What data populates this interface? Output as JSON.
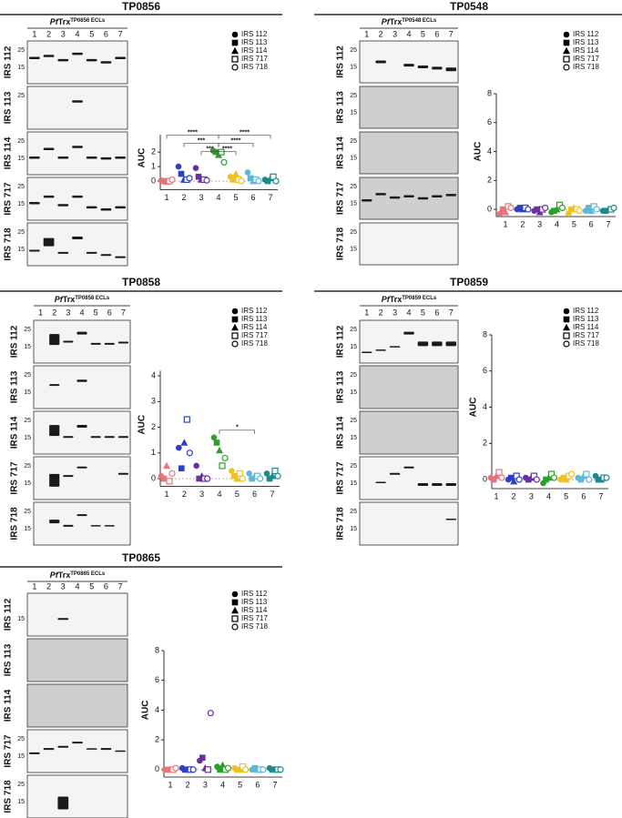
{
  "chart_data": [
    {
      "type": "scatter",
      "title": "TP0856",
      "y_label": "AUC",
      "categories": [
        "1",
        "2",
        "3",
        "4",
        "5",
        "6",
        "7"
      ],
      "category_colors": [
        "#e8737a",
        "#2b3fc7",
        "#6a2fa0",
        "#2aa02a",
        "#f0c020",
        "#5bb8d8",
        "#1a8a8a"
      ],
      "ylim": [
        -0.6,
        3.2
      ],
      "yticks": [
        0,
        1,
        2
      ],
      "series": [
        {
          "name": "IRS 112",
          "marker": "circle",
          "values": [
            0.05,
            1.0,
            0.9,
            2.1,
            0.3,
            0.6,
            0.1
          ]
        },
        {
          "name": "IRS 113",
          "marker": "square",
          "values": [
            0.0,
            0.5,
            0.3,
            2.0,
            0.1,
            0.2,
            0.0
          ]
        },
        {
          "name": "IRS 114",
          "marker": "triangle",
          "values": [
            -0.05,
            0.1,
            0.1,
            1.8,
            0.5,
            0.0,
            0.2
          ]
        },
        {
          "name": "IRS 717",
          "marker": "open-square",
          "values": [
            0.0,
            0.1,
            0.1,
            2.0,
            0.1,
            0.1,
            0.3
          ]
        },
        {
          "name": "IRS 718",
          "marker": "open-circle",
          "values": [
            0.1,
            0.2,
            0.05,
            1.3,
            0.0,
            0.0,
            0.0
          ]
        }
      ],
      "brackets": [
        {
          "label": "****",
          "between": [
            "1",
            "4"
          ]
        },
        {
          "label": "***",
          "between": [
            "2",
            "4"
          ]
        },
        {
          "label": "***",
          "between": [
            "3",
            "4"
          ]
        },
        {
          "label": "****",
          "between": [
            "4",
            "7"
          ]
        },
        {
          "label": "****",
          "between": [
            "4",
            "6"
          ]
        },
        {
          "label": "****",
          "between": [
            "4",
            "5"
          ]
        }
      ]
    },
    {
      "type": "scatter",
      "title": "TP0548",
      "y_label": "AUC",
      "categories": [
        "1",
        "2",
        "3",
        "4",
        "5",
        "6",
        "7"
      ],
      "category_colors": [
        "#e8737a",
        "#2b3fc7",
        "#6a2fa0",
        "#2aa02a",
        "#f0c020",
        "#5bb8d8",
        "#1a8a8a"
      ],
      "ylim": [
        -0.5,
        8
      ],
      "yticks": [
        0,
        2,
        4,
        6,
        8
      ],
      "series": [
        {
          "name": "IRS 112",
          "marker": "circle",
          "values": [
            -0.3,
            0.0,
            -0.1,
            -0.2,
            -0.3,
            -0.1,
            -0.1
          ]
        },
        {
          "name": "IRS 113",
          "marker": "square",
          "values": [
            0.0,
            0.1,
            0.0,
            -0.1,
            0.0,
            0.1,
            -0.1
          ]
        },
        {
          "name": "IRS 114",
          "marker": "triangle",
          "values": [
            -0.2,
            0.0,
            -0.2,
            0.0,
            0.1,
            -0.1,
            0.0
          ]
        },
        {
          "name": "IRS 717",
          "marker": "open-square",
          "values": [
            0.2,
            0.1,
            0.0,
            0.3,
            0.0,
            0.2,
            0.0
          ]
        },
        {
          "name": "IRS 718",
          "marker": "open-circle",
          "values": [
            0.1,
            0.0,
            0.1,
            0.1,
            -0.1,
            0.0,
            0.1
          ]
        }
      ]
    },
    {
      "type": "scatter",
      "title": "TP0858",
      "y_label": "AUC",
      "categories": [
        "1",
        "2",
        "3",
        "4",
        "5",
        "6",
        "7"
      ],
      "category_colors": [
        "#e8737a",
        "#2b3fc7",
        "#6a2fa0",
        "#2aa02a",
        "#f0c020",
        "#5bb8d8",
        "#1a8a8a"
      ],
      "ylim": [
        -0.3,
        4.2
      ],
      "yticks": [
        0,
        1,
        2,
        3,
        4
      ],
      "series": [
        {
          "name": "IRS 112",
          "marker": "circle",
          "values": [
            0.1,
            1.2,
            0.5,
            1.6,
            0.3,
            0.2,
            0.2
          ]
        },
        {
          "name": "IRS 113",
          "marker": "square",
          "values": [
            0.0,
            0.4,
            0.0,
            1.4,
            0.1,
            0.0,
            0.0
          ]
        },
        {
          "name": "IRS 114",
          "marker": "triangle",
          "values": [
            0.5,
            1.4,
            0.1,
            1.1,
            0.0,
            0.1,
            0.1
          ]
        },
        {
          "name": "IRS 717",
          "marker": "open-square",
          "values": [
            -0.1,
            2.3,
            0.0,
            0.5,
            0.2,
            0.1,
            0.3
          ]
        },
        {
          "name": "IRS 718",
          "marker": "open-circle",
          "values": [
            0.2,
            1.0,
            0.0,
            0.8,
            0.0,
            0.0,
            0.1
          ]
        }
      ],
      "brackets": [
        {
          "label": "*",
          "between": [
            "4",
            "6"
          ]
        }
      ]
    },
    {
      "type": "scatter",
      "title": "TP0859",
      "y_label": "AUC",
      "categories": [
        "1",
        "2",
        "3",
        "4",
        "5",
        "6",
        "7"
      ],
      "category_colors": [
        "#e8737a",
        "#2b3fc7",
        "#6a2fa0",
        "#2aa02a",
        "#f0c020",
        "#5bb8d8",
        "#1a8a8a"
      ],
      "ylim": [
        -0.5,
        8
      ],
      "yticks": [
        0,
        2,
        4,
        6,
        8
      ],
      "series": [
        {
          "name": "IRS 112",
          "marker": "circle",
          "values": [
            0.1,
            0.0,
            0.1,
            -0.2,
            0.0,
            0.1,
            0.2
          ]
        },
        {
          "name": "IRS 113",
          "marker": "square",
          "values": [
            0.0,
            0.1,
            0.0,
            0.0,
            0.1,
            0.0,
            0.0
          ]
        },
        {
          "name": "IRS 114",
          "marker": "triangle",
          "values": [
            0.2,
            -0.1,
            0.1,
            0.1,
            0.0,
            0.2,
            0.0
          ]
        },
        {
          "name": "IRS 717",
          "marker": "open-square",
          "values": [
            0.4,
            0.2,
            0.2,
            0.3,
            0.2,
            0.3,
            0.1
          ]
        },
        {
          "name": "IRS 718",
          "marker": "open-circle",
          "values": [
            0.1,
            0.0,
            0.0,
            0.1,
            0.3,
            0.0,
            0.1
          ]
        }
      ]
    },
    {
      "type": "scatter",
      "title": "TP0865",
      "y_label": "AUC",
      "categories": [
        "1",
        "2",
        "3",
        "4",
        "5",
        "6",
        "7"
      ],
      "category_colors": [
        "#e8737a",
        "#2b3fc7",
        "#6a2fa0",
        "#2aa02a",
        "#f0c020",
        "#5bb8d8",
        "#1a8a8a"
      ],
      "ylim": [
        -0.5,
        8
      ],
      "yticks": [
        0,
        2,
        4,
        6,
        8
      ],
      "series": [
        {
          "name": "IRS 112",
          "marker": "circle",
          "values": [
            0.0,
            0.1,
            0.6,
            0.2,
            0.1,
            0.0,
            0.1
          ]
        },
        {
          "name": "IRS 113",
          "marker": "square",
          "values": [
            0.0,
            0.0,
            0.8,
            0.0,
            0.0,
            0.1,
            0.0
          ]
        },
        {
          "name": "IRS 114",
          "marker": "triangle",
          "values": [
            0.0,
            0.0,
            0.1,
            0.3,
            0.0,
            0.0,
            0.0
          ]
        },
        {
          "name": "IRS 717",
          "marker": "open-square",
          "values": [
            0.0,
            0.0,
            0.0,
            0.0,
            0.2,
            0.0,
            0.0
          ]
        },
        {
          "name": "IRS 718",
          "marker": "open-circle",
          "values": [
            0.1,
            0.0,
            3.8,
            0.1,
            0.0,
            0.0,
            0.0
          ]
        }
      ]
    }
  ],
  "blots": [
    {
      "header_italic": "Pf",
      "header": "Trx",
      "header_sup": "TP0856 ECLs",
      "rows": [
        {
          "label": "IRS 112",
          "markers": [
            "25",
            "15"
          ]
        },
        {
          "label": "IRS 113",
          "markers": [
            "25"
          ]
        },
        {
          "label": "IRS 114",
          "markers": [
            "25",
            "15"
          ]
        },
        {
          "label": "IRS 717",
          "markers": [
            "25",
            "15"
          ]
        },
        {
          "label": "IRS 718",
          "markers": [
            "25",
            "15"
          ]
        }
      ]
    },
    {
      "header_italic": "Pf",
      "header": "Trx",
      "header_sup": "TP0548 ECLs",
      "rows": [
        {
          "label": "IRS 112",
          "markers": [
            "25",
            "15"
          ]
        },
        {
          "label": "IRS 113",
          "markers": [
            "25",
            "15"
          ]
        },
        {
          "label": "IRS 114",
          "markers": [
            "25",
            "15"
          ]
        },
        {
          "label": "IRS 717",
          "markers": [
            "25",
            "15"
          ]
        },
        {
          "label": "IRS 718",
          "markers": [
            "25",
            "15"
          ]
        }
      ]
    },
    {
      "header_italic": "Pf",
      "header": "Trx",
      "header_sup": "TP0858 ECLs",
      "rows": [
        {
          "label": "IRS 112",
          "markers": [
            "25",
            "15"
          ]
        },
        {
          "label": "IRS 113",
          "markers": [
            "25",
            "15"
          ]
        },
        {
          "label": "IRS 114",
          "markers": [
            "25",
            "15"
          ]
        },
        {
          "label": "IRS 717",
          "markers": [
            "25",
            "15"
          ]
        },
        {
          "label": "IRS 718",
          "markers": [
            "25",
            "15"
          ]
        }
      ]
    },
    {
      "header_italic": "Pf",
      "header": "Trx",
      "header_sup": "TP0859 ECLs",
      "rows": [
        {
          "label": "IRS 112",
          "markers": [
            "25",
            "15"
          ]
        },
        {
          "label": "IRS 113",
          "markers": [
            "25",
            "15"
          ]
        },
        {
          "label": "IRS 114",
          "markers": [
            "25",
            "15"
          ]
        },
        {
          "label": "IRS 717",
          "markers": [
            "25",
            "15"
          ]
        },
        {
          "label": "IRS 718",
          "markers": [
            "25",
            "15"
          ]
        }
      ]
    },
    {
      "header_italic": "Pf",
      "header": "Trx",
      "header_sup": "TP0865 ECLs",
      "rows": [
        {
          "label": "IRS 112",
          "markers": [
            "15"
          ]
        },
        {
          "label": "IRS 113",
          "markers": []
        },
        {
          "label": "IRS 114",
          "markers": []
        },
        {
          "label": "IRS 717",
          "markers": [
            "25",
            "15"
          ]
        },
        {
          "label": "IRS 718",
          "markers": [
            "25",
            "15"
          ]
        }
      ]
    }
  ]
}
